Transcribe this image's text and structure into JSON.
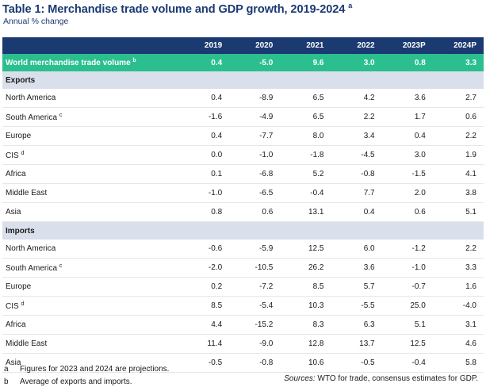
{
  "title": "Table 1: Merchandise trade volume and GDP growth, 2019-2024",
  "title_note": "a",
  "subtitle": "Annual % change",
  "columns": [
    "2019",
    "2020",
    "2021",
    "2022",
    "2023P",
    "2024P"
  ],
  "world": {
    "label": "World merchandise trade volume",
    "note": "b",
    "values": [
      "0.4",
      "-5.0",
      "9.6",
      "3.0",
      "0.8",
      "3.3"
    ]
  },
  "exports": {
    "label": "Exports",
    "rows": [
      {
        "label": "North America",
        "note": "",
        "values": [
          "0.4",
          "-8.9",
          "6.5",
          "4.2",
          "3.6",
          "2.7"
        ]
      },
      {
        "label": "South America",
        "note": "c",
        "values": [
          "-1.6",
          "-4.9",
          "6.5",
          "2.2",
          "1.7",
          "0.6"
        ]
      },
      {
        "label": "Europe",
        "note": "",
        "values": [
          "0.4",
          "-7.7",
          "8.0",
          "3.4",
          "0.4",
          "2.2"
        ]
      },
      {
        "label": "CIS",
        "note": "d",
        "values": [
          "0.0",
          "-1.0",
          "-1.8",
          "-4.5",
          "3.0",
          "1.9"
        ]
      },
      {
        "label": "Africa",
        "note": "",
        "values": [
          "0.1",
          "-6.8",
          "5.2",
          "-0.8",
          "-1.5",
          "4.1"
        ]
      },
      {
        "label": "Middle East",
        "note": "",
        "values": [
          "-1.0",
          "-6.5",
          "-0.4",
          "7.7",
          "2.0",
          "3.8"
        ]
      },
      {
        "label": "Asia",
        "note": "",
        "values": [
          "0.8",
          "0.6",
          "13.1",
          "0.4",
          "0.6",
          "5.1"
        ]
      }
    ]
  },
  "imports": {
    "label": "Imports",
    "rows": [
      {
        "label": "North America",
        "note": "",
        "values": [
          "-0.6",
          "-5.9",
          "12.5",
          "6.0",
          "-1.2",
          "2.2"
        ]
      },
      {
        "label": "South America",
        "note": "c",
        "values": [
          "-2.0",
          "-10.5",
          "26.2",
          "3.6",
          "-1.0",
          "3.3"
        ]
      },
      {
        "label": "Europe",
        "note": "",
        "values": [
          "0.2",
          "-7.2",
          "8.5",
          "5.7",
          "-0.7",
          "1.6"
        ]
      },
      {
        "label": "CIS",
        "note": "d",
        "values": [
          "8.5",
          "-5.4",
          "10.3",
          "-5.5",
          "25.0",
          "-4.0"
        ]
      },
      {
        "label": "Africa",
        "note": "",
        "values": [
          "4.4",
          "-15.2",
          "8.3",
          "6.3",
          "5.1",
          "3.1"
        ]
      },
      {
        "label": "Middle East",
        "note": "",
        "values": [
          "11.4",
          "-9.0",
          "12.8",
          "13.7",
          "12.5",
          "4.6"
        ]
      },
      {
        "label": "Asia",
        "note": "",
        "values": [
          "-0.5",
          "-0.8",
          "10.6",
          "-0.5",
          "-0.4",
          "5.8"
        ]
      }
    ]
  },
  "footnotes": [
    {
      "key": "a",
      "text": "Figures for 2023 and 2024 are projections."
    },
    {
      "key": "b",
      "text": "Average of exports and imports."
    }
  ],
  "sources": {
    "label": "Sources:",
    "text": "WTO for trade, consensus estimates for GDP."
  }
}
